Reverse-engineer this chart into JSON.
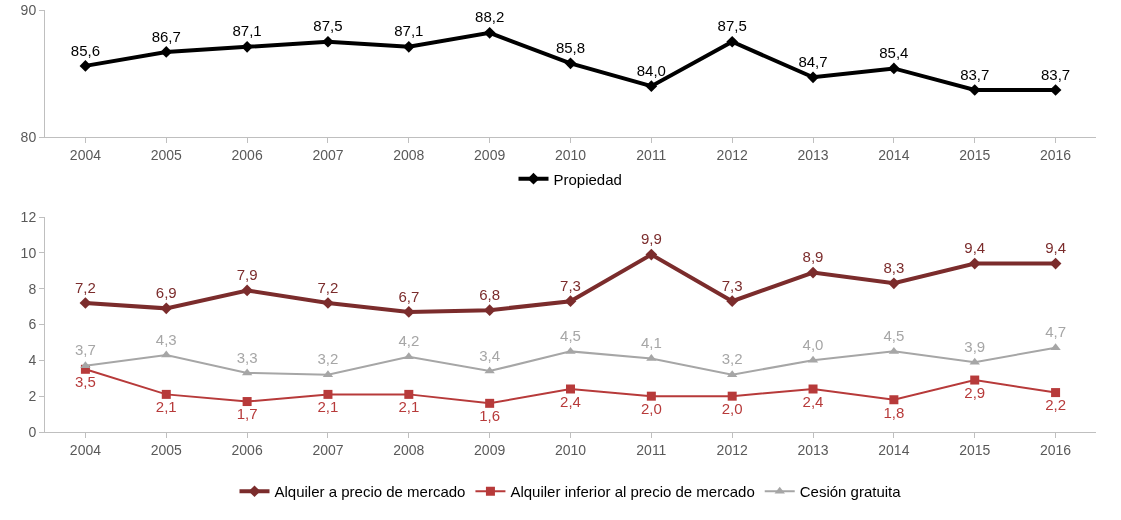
{
  "chart_data": [
    {
      "type": "line",
      "categories": [
        "2004",
        "2005",
        "2006",
        "2007",
        "2008",
        "2009",
        "2010",
        "2011",
        "2012",
        "2013",
        "2014",
        "2015",
        "2016"
      ],
      "series": [
        {
          "name": "Propiedad",
          "color": "#000000",
          "marker": "diamond",
          "values": [
            85.6,
            86.7,
            87.1,
            87.5,
            87.1,
            88.2,
            85.8,
            84.0,
            87.5,
            84.7,
            85.4,
            83.7,
            83.7
          ],
          "value_labels": [
            "85,6",
            "86,7",
            "87,1",
            "87,5",
            "87,1",
            "88,2",
            "85,8",
            "84,0",
            "87,5",
            "84,7",
            "85,4",
            "83,7",
            "83,7"
          ]
        }
      ],
      "ylim": [
        80,
        90
      ],
      "yticks": [
        80,
        90
      ],
      "grid": false,
      "legend": "bottom",
      "line_style": "solid"
    },
    {
      "type": "line",
      "categories": [
        "2004",
        "2005",
        "2006",
        "2007",
        "2008",
        "2009",
        "2010",
        "2011",
        "2012",
        "2013",
        "2014",
        "2015",
        "2016"
      ],
      "series": [
        {
          "name": "Alquiler a precio de mercado",
          "color": "#7b2c2c",
          "marker": "diamond",
          "values": [
            7.2,
            6.9,
            7.9,
            7.2,
            6.7,
            6.8,
            7.3,
            9.9,
            7.3,
            8.9,
            8.3,
            9.4,
            9.4
          ],
          "value_labels": [
            "7,2",
            "6,9",
            "7,9",
            "7,2",
            "6,7",
            "6,8",
            "7,3",
            "9,9",
            "7,3",
            "8,9",
            "8,3",
            "9,4",
            "9,4"
          ]
        },
        {
          "name": "Alquiler inferior al precio de mercado",
          "color": "#b73a3a",
          "marker": "square",
          "values": [
            3.5,
            2.1,
            1.7,
            2.1,
            2.1,
            1.6,
            2.4,
            2.0,
            2.0,
            2.4,
            1.8,
            2.9,
            2.2
          ],
          "value_labels": [
            "3,5",
            "2,1",
            "1,7",
            "2,1",
            "2,1",
            "1,6",
            "2,4",
            "2,0",
            "2,0",
            "2,4",
            "1,8",
            "2,9",
            "2,2"
          ]
        },
        {
          "name": "Cesión gratuita",
          "color": "#a6a6a6",
          "marker": "triangle",
          "values": [
            3.7,
            4.3,
            3.3,
            3.2,
            4.2,
            3.4,
            4.5,
            4.1,
            3.2,
            4.0,
            4.5,
            3.9,
            4.7
          ],
          "value_labels": [
            "3,7",
            "4,3",
            "3,3",
            "3,2",
            "4,2",
            "3,4",
            "4,5",
            "4,1",
            "3,2",
            "4,0",
            "4,5",
            "3,9",
            "4,7"
          ]
        }
      ],
      "ylim": [
        0,
        12
      ],
      "yticks": [
        0,
        2,
        4,
        6,
        8,
        10,
        12
      ],
      "grid": false,
      "legend": "bottom",
      "line_style": "solid"
    }
  ]
}
